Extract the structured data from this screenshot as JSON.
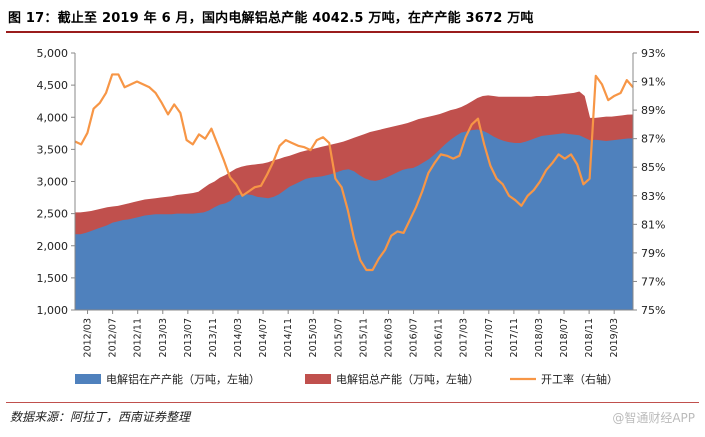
{
  "figure": {
    "title": "图 17：截止至 2019 年 6 月，国内电解铝总产能 4042.5 万吨，在产产能 3672 万吨",
    "source": "数据来源：阿拉丁，西南证券整理",
    "watermark": "@智通财经APP"
  },
  "chart_data": {
    "type": "area",
    "title": "图 17：截止至 2019 年 6 月，国内电解铝总产能 4042.5 万吨，在产产能 3672 万吨",
    "x_tick_labels": [
      "2012/03",
      "2012/07",
      "2012/11",
      "2013/03",
      "2013/07",
      "2013/11",
      "2014/03",
      "2014/07",
      "2014/11",
      "2015/03",
      "2015/07",
      "2015/11",
      "2016/03",
      "2016/07",
      "2016/11",
      "2017/03",
      "2017/07",
      "2017/11",
      "2018/03",
      "2018/07",
      "2018/11",
      "2019/03"
    ],
    "x_start": "2012/01",
    "x_end": "2019/06",
    "left_axis": {
      "min": 1000,
      "max": 5000,
      "ticks": [
        "1,000",
        "1,500",
        "2,000",
        "2,500",
        "3,000",
        "3,500",
        "4,000",
        "4,500",
        "5,000"
      ]
    },
    "right_axis": {
      "min": 75,
      "max": 93,
      "ticks": [
        "75%",
        "77%",
        "79%",
        "81%",
        "83%",
        "85%",
        "87%",
        "89%",
        "91%",
        "93%"
      ]
    },
    "series": [
      {
        "name": "电解铝在产产能（万吨，左轴）",
        "kind": "area",
        "axis": "left",
        "color": "#4f81bd",
        "values": [
          2180,
          2180,
          2200,
          2230,
          2260,
          2290,
          2320,
          2360,
          2380,
          2400,
          2410,
          2430,
          2450,
          2470,
          2480,
          2490,
          2490,
          2490,
          2490,
          2500,
          2500,
          2500,
          2500,
          2510,
          2520,
          2550,
          2600,
          2640,
          2660,
          2700,
          2780,
          2800,
          2800,
          2790,
          2760,
          2750,
          2740,
          2760,
          2800,
          2860,
          2920,
          2960,
          3000,
          3040,
          3060,
          3070,
          3080,
          3100,
          3120,
          3150,
          3180,
          3190,
          3160,
          3100,
          3050,
          3020,
          3010,
          3030,
          3060,
          3100,
          3140,
          3180,
          3200,
          3210,
          3250,
          3300,
          3350,
          3420,
          3500,
          3580,
          3650,
          3710,
          3760,
          3780,
          3800,
          3810,
          3790,
          3750,
          3700,
          3660,
          3630,
          3610,
          3600,
          3600,
          3620,
          3650,
          3680,
          3710,
          3720,
          3730,
          3740,
          3750,
          3740,
          3730,
          3720,
          3680,
          3640,
          3650,
          3640,
          3630,
          3640,
          3650,
          3660,
          3670,
          3672
        ]
      },
      {
        "name": "电解铝总产能（万吨，左轴）",
        "kind": "area",
        "axis": "left",
        "color": "#c0504d",
        "values": [
          2520,
          2520,
          2530,
          2540,
          2560,
          2580,
          2600,
          2610,
          2620,
          2640,
          2660,
          2680,
          2700,
          2720,
          2730,
          2740,
          2750,
          2760,
          2770,
          2790,
          2800,
          2810,
          2820,
          2840,
          2900,
          2960,
          3000,
          3060,
          3100,
          3150,
          3200,
          3230,
          3250,
          3260,
          3270,
          3280,
          3300,
          3330,
          3350,
          3380,
          3400,
          3430,
          3460,
          3480,
          3500,
          3520,
          3540,
          3560,
          3580,
          3600,
          3620,
          3650,
          3680,
          3710,
          3740,
          3770,
          3790,
          3810,
          3830,
          3850,
          3870,
          3890,
          3910,
          3940,
          3970,
          3990,
          4010,
          4030,
          4050,
          4080,
          4110,
          4130,
          4160,
          4200,
          4250,
          4300,
          4330,
          4340,
          4330,
          4320,
          4320,
          4320,
          4320,
          4320,
          4320,
          4320,
          4330,
          4330,
          4330,
          4340,
          4350,
          4360,
          4370,
          4380,
          4400,
          4330,
          3990,
          3990,
          4000,
          4010,
          4010,
          4020,
          4030,
          4040,
          4042.5
        ]
      },
      {
        "name": "开工率（右轴）",
        "kind": "line",
        "axis": "right",
        "color": "#f79646",
        "values": [
          86.8,
          86.6,
          87.4,
          89.1,
          89.5,
          90.2,
          91.5,
          91.5,
          90.6,
          90.8,
          91.0,
          90.8,
          90.6,
          90.2,
          89.5,
          88.7,
          89.4,
          88.8,
          86.9,
          86.6,
          87.3,
          87.0,
          87.7,
          86.6,
          85.5,
          84.3,
          83.8,
          83.0,
          83.3,
          83.6,
          83.7,
          84.5,
          85.4,
          86.5,
          86.9,
          86.7,
          86.5,
          86.4,
          86.2,
          86.9,
          87.1,
          86.7,
          84.2,
          83.6,
          82.0,
          80.0,
          78.5,
          77.8,
          77.8,
          78.6,
          79.2,
          80.2,
          80.5,
          80.4,
          81.3,
          82.2,
          83.3,
          84.6,
          85.3,
          85.9,
          85.8,
          85.6,
          85.8,
          87.1,
          88.0,
          88.4,
          86.6,
          85.1,
          84.2,
          83.8,
          83.0,
          82.7,
          82.3,
          83.0,
          83.4,
          84.0,
          84.8,
          85.3,
          85.9,
          85.6,
          85.9,
          85.2,
          83.8,
          84.2,
          91.4,
          90.8,
          89.7,
          90.0,
          90.2,
          91.1,
          90.6
        ]
      }
    ]
  },
  "legend": [
    {
      "label": "电解铝在产产能（万吨，左轴）",
      "color": "#4f81bd",
      "kind": "box"
    },
    {
      "label": "电解铝总产能（万吨，左轴）",
      "color": "#c0504d",
      "kind": "box"
    },
    {
      "label": "开工率（右轴）",
      "color": "#f79646",
      "kind": "line"
    }
  ]
}
